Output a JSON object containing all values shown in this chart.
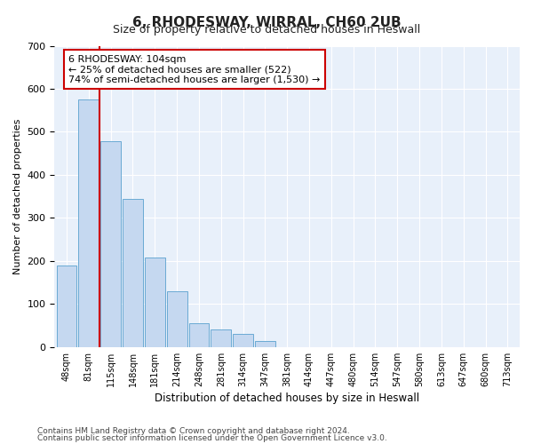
{
  "title": "6, RHODESWAY, WIRRAL, CH60 2UB",
  "subtitle": "Size of property relative to detached houses in Heswall",
  "xlabel": "Distribution of detached houses by size in Heswall",
  "ylabel": "Number of detached properties",
  "bar_color": "#c5d8f0",
  "bar_edge_color": "#6aaad4",
  "background_color": "#e8f0fa",
  "grid_color": "#ffffff",
  "annotation_text": "6 RHODESWAY: 104sqm\n← 25% of detached houses are smaller (522)\n74% of semi-detached houses are larger (1,530) →",
  "annotation_box_color": "#ffffff",
  "annotation_box_edge": "#cc0000",
  "vline_color": "#cc0000",
  "vline_pos": 1.5,
  "categories": [
    "48sqm",
    "81sqm",
    "115sqm",
    "148sqm",
    "181sqm",
    "214sqm",
    "248sqm",
    "281sqm",
    "314sqm",
    "347sqm",
    "381sqm",
    "414sqm",
    "447sqm",
    "480sqm",
    "514sqm",
    "547sqm",
    "580sqm",
    "613sqm",
    "647sqm",
    "680sqm",
    "713sqm"
  ],
  "values": [
    190,
    575,
    478,
    345,
    207,
    130,
    55,
    40,
    30,
    15,
    0,
    0,
    0,
    0,
    0,
    0,
    0,
    0,
    0,
    0,
    0
  ],
  "ylim": [
    0,
    700
  ],
  "yticks": [
    0,
    100,
    200,
    300,
    400,
    500,
    600,
    700
  ],
  "footer1": "Contains HM Land Registry data © Crown copyright and database right 2024.",
  "footer2": "Contains public sector information licensed under the Open Government Licence v3.0."
}
